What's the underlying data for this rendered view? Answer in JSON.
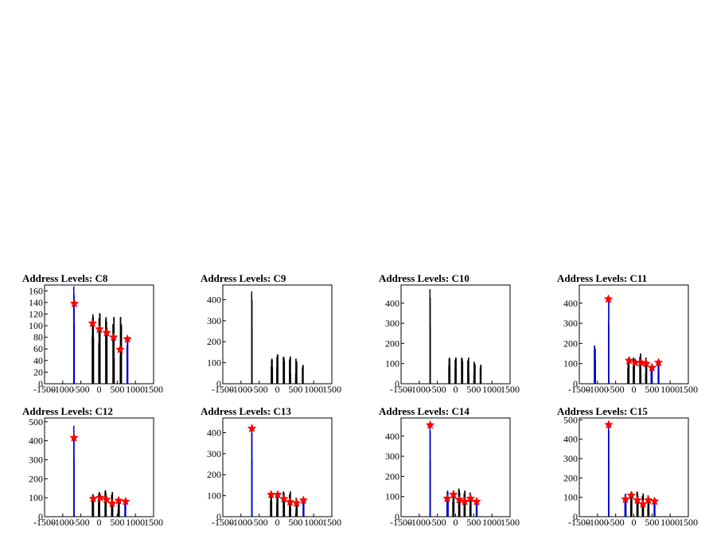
{
  "chart_data": [
    {
      "type": "histogram",
      "title": "Address Levels: C8",
      "xlim": [
        -1500,
        1500
      ],
      "ylim": [
        0,
        170
      ],
      "xticks": [
        -1500,
        -1000,
        -500,
        0,
        500,
        1000,
        1500
      ],
      "yticks": [
        0,
        20,
        40,
        60,
        80,
        100,
        120,
        140,
        160
      ],
      "line_color": "#0000cc",
      "series": [
        {
          "peak_x": -690,
          "peak_y": 168,
          "width": 26,
          "color": "#0000cc"
        },
        {
          "peak_x": -170,
          "peak_y": 120,
          "width": 45,
          "color": "#000000"
        },
        {
          "peak_x": 10,
          "peak_y": 122,
          "width": 45,
          "color": "#000000"
        },
        {
          "peak_x": 200,
          "peak_y": 115,
          "width": 45,
          "color": "#000000"
        },
        {
          "peak_x": 400,
          "peak_y": 115,
          "width": 45,
          "color": "#000000"
        },
        {
          "peak_x": 600,
          "peak_y": 115,
          "width": 45,
          "color": "#000000"
        },
        {
          "peak_x": 780,
          "peak_y": 80,
          "width": 30,
          "color": "#0000cc"
        }
      ],
      "markers": [
        {
          "x": -680,
          "y": 138
        },
        {
          "x": -180,
          "y": 104
        },
        {
          "x": 10,
          "y": 94
        },
        {
          "x": 210,
          "y": 88
        },
        {
          "x": 400,
          "y": 80
        },
        {
          "x": 580,
          "y": 59
        },
        {
          "x": 780,
          "y": 77
        }
      ]
    },
    {
      "type": "histogram",
      "title": "Address Levels: C9",
      "xlim": [
        -1500,
        1500
      ],
      "ylim": [
        0,
        470
      ],
      "xticks": [
        -1500,
        -1000,
        -500,
        0,
        500,
        1000,
        1500
      ],
      "yticks": [
        0,
        100,
        200,
        300,
        400
      ],
      "line_color": "#000000",
      "series": [
        {
          "peak_x": -700,
          "peak_y": 440,
          "width": 20,
          "color": "#000000"
        },
        {
          "peak_x": -150,
          "peak_y": 120,
          "width": 40,
          "color": "#000000"
        },
        {
          "peak_x": 0,
          "peak_y": 140,
          "width": 40,
          "color": "#000000"
        },
        {
          "peak_x": 180,
          "peak_y": 130,
          "width": 40,
          "color": "#000000"
        },
        {
          "peak_x": 350,
          "peak_y": 130,
          "width": 40,
          "color": "#000000"
        },
        {
          "peak_x": 520,
          "peak_y": 120,
          "width": 40,
          "color": "#000000"
        },
        {
          "peak_x": 700,
          "peak_y": 90,
          "width": 30,
          "color": "#000000"
        }
      ],
      "markers": []
    },
    {
      "type": "histogram",
      "title": "Address Levels: C10",
      "xlim": [
        -1500,
        1500
      ],
      "ylim": [
        0,
        490
      ],
      "xticks": [
        -1500,
        -1000,
        -500,
        0,
        500,
        1000,
        1500
      ],
      "yticks": [
        0,
        100,
        200,
        300,
        400
      ],
      "line_color": "#000000",
      "series": [
        {
          "peak_x": -700,
          "peak_y": 470,
          "width": 20,
          "color": "#000000"
        },
        {
          "peak_x": -170,
          "peak_y": 130,
          "width": 40,
          "color": "#000000"
        },
        {
          "peak_x": 0,
          "peak_y": 130,
          "width": 40,
          "color": "#000000"
        },
        {
          "peak_x": 180,
          "peak_y": 130,
          "width": 40,
          "color": "#000000"
        },
        {
          "peak_x": 350,
          "peak_y": 130,
          "width": 40,
          "color": "#000000"
        },
        {
          "peak_x": 520,
          "peak_y": 110,
          "width": 40,
          "color": "#000000"
        },
        {
          "peak_x": 690,
          "peak_y": 95,
          "width": 30,
          "color": "#000000"
        }
      ],
      "markers": []
    },
    {
      "type": "histogram",
      "title": "Address Levels: C11",
      "xlim": [
        -1500,
        1500
      ],
      "ylim": [
        0,
        490
      ],
      "xticks": [
        -1500,
        -1000,
        -500,
        0,
        500,
        1000,
        1500
      ],
      "yticks": [
        0,
        100,
        200,
        300,
        400
      ],
      "line_color": "#0000cc",
      "series": [
        {
          "peak_x": -1070,
          "peak_y": 190,
          "width": 40,
          "color": "#0000cc"
        },
        {
          "peak_x": -690,
          "peak_y": 430,
          "width": 20,
          "color": "#0000cc"
        },
        {
          "peak_x": -150,
          "peak_y": 130,
          "width": 40,
          "color": "#000000"
        },
        {
          "peak_x": 0,
          "peak_y": 130,
          "width": 40,
          "color": "#000000"
        },
        {
          "peak_x": 180,
          "peak_y": 150,
          "width": 40,
          "color": "#000000"
        },
        {
          "peak_x": 340,
          "peak_y": 130,
          "width": 40,
          "color": "#000000"
        },
        {
          "peak_x": 490,
          "peak_y": 100,
          "width": 40,
          "color": "#0000cc"
        },
        {
          "peak_x": 680,
          "peak_y": 110,
          "width": 30,
          "color": "#0000cc"
        }
      ],
      "markers": [
        {
          "x": -700,
          "y": 420
        },
        {
          "x": -130,
          "y": 115
        },
        {
          "x": 40,
          "y": 105
        },
        {
          "x": 200,
          "y": 105
        },
        {
          "x": 340,
          "y": 100
        },
        {
          "x": 500,
          "y": 80
        },
        {
          "x": 680,
          "y": 105
        }
      ]
    },
    {
      "type": "histogram",
      "title": "Address Levels: C12",
      "xlim": [
        -1500,
        1500
      ],
      "ylim": [
        0,
        520
      ],
      "xticks": [
        -1500,
        -1000,
        -500,
        0,
        500,
        1000,
        1500
      ],
      "yticks": [
        0,
        100,
        200,
        300,
        400,
        500
      ],
      "line_color": "#0000cc",
      "series": [
        {
          "peak_x": -690,
          "peak_y": 480,
          "width": 20,
          "color": "#0000cc"
        },
        {
          "peak_x": -170,
          "peak_y": 120,
          "width": 40,
          "color": "#000000"
        },
        {
          "peak_x": 0,
          "peak_y": 130,
          "width": 40,
          "color": "#000000"
        },
        {
          "peak_x": 180,
          "peak_y": 140,
          "width": 40,
          "color": "#000000"
        },
        {
          "peak_x": 360,
          "peak_y": 130,
          "width": 40,
          "color": "#000000"
        },
        {
          "peak_x": 540,
          "peak_y": 100,
          "width": 40,
          "color": "#000000"
        },
        {
          "peak_x": 720,
          "peak_y": 85,
          "width": 30,
          "color": "#0000cc"
        }
      ],
      "markers": [
        {
          "x": -690,
          "y": 415
        },
        {
          "x": -160,
          "y": 95
        },
        {
          "x": 30,
          "y": 100
        },
        {
          "x": 200,
          "y": 90
        },
        {
          "x": 360,
          "y": 70
        },
        {
          "x": 540,
          "y": 85
        },
        {
          "x": 730,
          "y": 80
        }
      ]
    },
    {
      "type": "histogram",
      "title": "Address Levels: C13",
      "xlim": [
        -1500,
        1500
      ],
      "ylim": [
        0,
        470
      ],
      "xticks": [
        -1500,
        -1000,
        -500,
        0,
        500,
        1000,
        1500
      ],
      "yticks": [
        0,
        100,
        200,
        300,
        400
      ],
      "line_color": "#0000cc",
      "series": [
        {
          "peak_x": -700,
          "peak_y": 440,
          "width": 20,
          "color": "#0000cc"
        },
        {
          "peak_x": -170,
          "peak_y": 110,
          "width": 40,
          "color": "#000000"
        },
        {
          "peak_x": 0,
          "peak_y": 110,
          "width": 40,
          "color": "#000000"
        },
        {
          "peak_x": 180,
          "peak_y": 120,
          "width": 40,
          "color": "#000000"
        },
        {
          "peak_x": 350,
          "peak_y": 120,
          "width": 40,
          "color": "#000000"
        },
        {
          "peak_x": 530,
          "peak_y": 90,
          "width": 40,
          "color": "#000000"
        },
        {
          "peak_x": 720,
          "peak_y": 85,
          "width": 30,
          "color": "#0000cc"
        }
      ],
      "markers": [
        {
          "x": -700,
          "y": 420
        },
        {
          "x": -170,
          "y": 105
        },
        {
          "x": 10,
          "y": 105
        },
        {
          "x": 180,
          "y": 85
        },
        {
          "x": 350,
          "y": 70
        },
        {
          "x": 530,
          "y": 65
        },
        {
          "x": 720,
          "y": 78
        }
      ]
    },
    {
      "type": "histogram",
      "title": "Address Levels: C14",
      "xlim": [
        -1500,
        1500
      ],
      "ylim": [
        0,
        490
      ],
      "xticks": [
        -1500,
        -1000,
        -500,
        0,
        500,
        1000,
        1500
      ],
      "yticks": [
        0,
        100,
        200,
        300,
        400
      ],
      "line_color": "#0000cc",
      "series": [
        {
          "peak_x": -700,
          "peak_y": 470,
          "width": 20,
          "color": "#0000cc"
        },
        {
          "peak_x": -220,
          "peak_y": 130,
          "width": 40,
          "color": "#0000cc"
        },
        {
          "peak_x": -60,
          "peak_y": 130,
          "width": 40,
          "color": "#000000"
        },
        {
          "peak_x": 100,
          "peak_y": 140,
          "width": 40,
          "color": "#000000"
        },
        {
          "peak_x": 250,
          "peak_y": 130,
          "width": 40,
          "color": "#000000"
        },
        {
          "peak_x": 410,
          "peak_y": 120,
          "width": 40,
          "color": "#000000"
        },
        {
          "peak_x": 580,
          "peak_y": 90,
          "width": 30,
          "color": "#0000cc"
        }
      ],
      "markers": [
        {
          "x": -700,
          "y": 455
        },
        {
          "x": -230,
          "y": 90
        },
        {
          "x": -60,
          "y": 110
        },
        {
          "x": 100,
          "y": 85
        },
        {
          "x": 250,
          "y": 75
        },
        {
          "x": 410,
          "y": 90
        },
        {
          "x": 580,
          "y": 75
        }
      ]
    },
    {
      "type": "histogram",
      "title": "Address Levels: C15",
      "xlim": [
        -1500,
        1500
      ],
      "ylim": [
        0,
        510
      ],
      "xticks": [
        -1500,
        -1000,
        -500,
        0,
        500,
        1000,
        1500
      ],
      "yticks": [
        0,
        100,
        200,
        300,
        400,
        500
      ],
      "line_color": "#0000cc",
      "series": [
        {
          "peak_x": -690,
          "peak_y": 490,
          "width": 20,
          "color": "#0000cc"
        },
        {
          "peak_x": -230,
          "peak_y": 120,
          "width": 40,
          "color": "#0000cc"
        },
        {
          "peak_x": -70,
          "peak_y": 130,
          "width": 40,
          "color": "#000000"
        },
        {
          "peak_x": 100,
          "peak_y": 130,
          "width": 40,
          "color": "#000000"
        },
        {
          "peak_x": 250,
          "peak_y": 120,
          "width": 40,
          "color": "#000000"
        },
        {
          "peak_x": 400,
          "peak_y": 110,
          "width": 40,
          "color": "#000000"
        },
        {
          "peak_x": 570,
          "peak_y": 90,
          "width": 30,
          "color": "#0000cc"
        }
      ],
      "markers": [
        {
          "x": -690,
          "y": 475
        },
        {
          "x": -230,
          "y": 90
        },
        {
          "x": -70,
          "y": 110
        },
        {
          "x": 100,
          "y": 85
        },
        {
          "x": 250,
          "y": 65
        },
        {
          "x": 400,
          "y": 85
        },
        {
          "x": 570,
          "y": 80
        }
      ]
    }
  ]
}
